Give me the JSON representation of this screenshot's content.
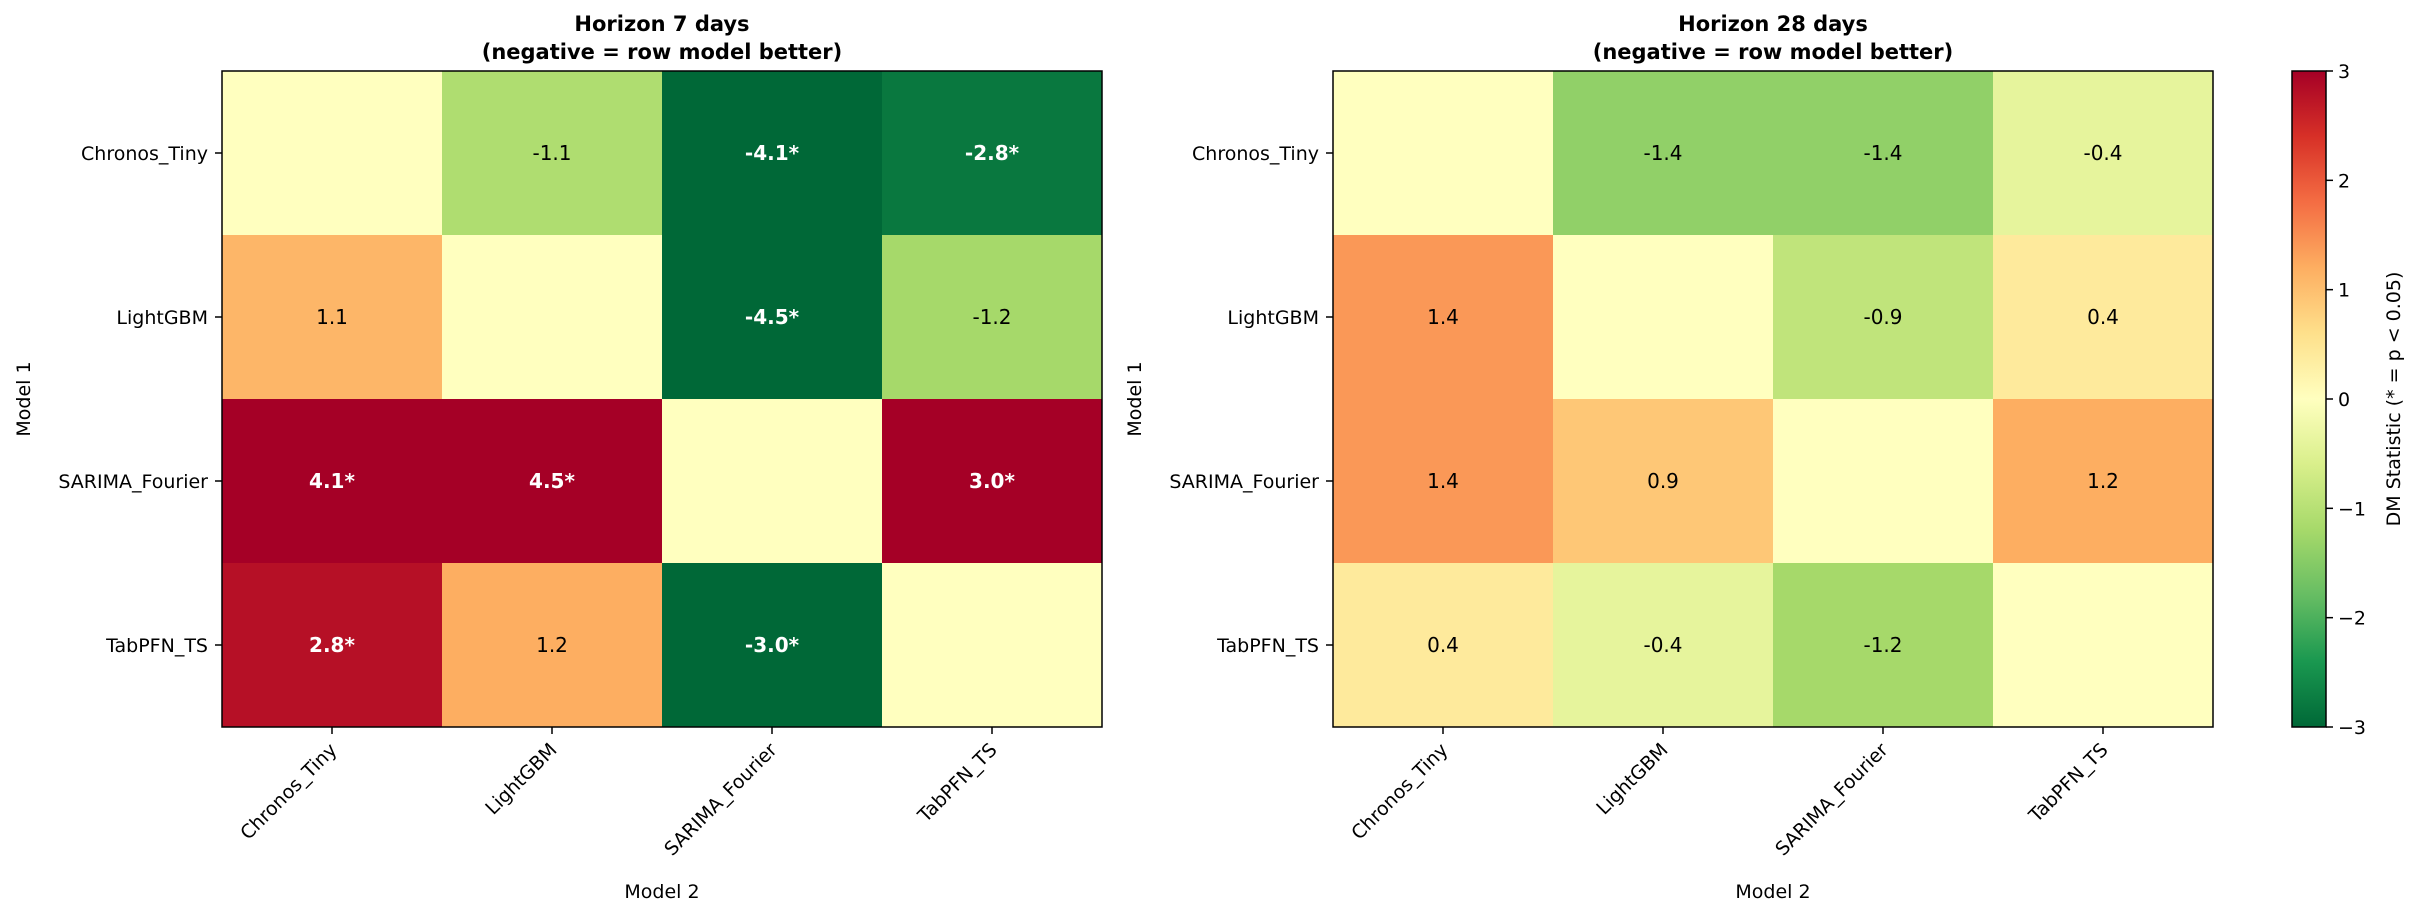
{
  "figure": {
    "colorbar": {
      "label": "DM Statistic (* = p < 0.05)",
      "range": [
        -3,
        3
      ],
      "ticks": [
        "3",
        "2",
        "1",
        "0",
        "−1",
        "−2",
        "−3"
      ],
      "colormap": "RdYlGn_r"
    }
  },
  "chart_data": [
    {
      "type": "heatmap",
      "title_line1": "Horizon 7 days",
      "title_line2": "(negative = row model better)",
      "xlabel": "Model 2",
      "ylabel": "Model 1",
      "rows": [
        "Chronos_Tiny",
        "LightGBM",
        "SARIMA_Fourier",
        "TabPFN_TS"
      ],
      "columns": [
        "Chronos_Tiny",
        "LightGBM",
        "SARIMA_Fourier",
        "TabPFN_TS"
      ],
      "values": [
        [
          0.0,
          -1.1,
          -4.1,
          -2.8
        ],
        [
          1.1,
          0.0,
          -4.5,
          -1.2
        ],
        [
          4.1,
          4.5,
          0.0,
          3.0
        ],
        [
          2.8,
          1.2,
          -3.0,
          0.0
        ]
      ],
      "cell_labels": [
        [
          "",
          "-1.1",
          "-4.1*",
          "-2.8*"
        ],
        [
          "1.1",
          "",
          "-4.5*",
          "-1.2"
        ],
        [
          "4.1*",
          "4.5*",
          "",
          "3.0*"
        ],
        [
          "2.8*",
          "1.2",
          "-3.0*",
          ""
        ]
      ],
      "significant": [
        [
          false,
          false,
          true,
          true
        ],
        [
          false,
          false,
          true,
          false
        ],
        [
          true,
          true,
          false,
          true
        ],
        [
          true,
          false,
          true,
          false
        ]
      ],
      "vmin": -3,
      "vmax": 3
    },
    {
      "type": "heatmap",
      "title_line1": "Horizon 28 days",
      "title_line2": "(negative = row model better)",
      "xlabel": "Model 2",
      "ylabel": "Model 1",
      "rows": [
        "Chronos_Tiny",
        "LightGBM",
        "SARIMA_Fourier",
        "TabPFN_TS"
      ],
      "columns": [
        "Chronos_Tiny",
        "LightGBM",
        "SARIMA_Fourier",
        "TabPFN_TS"
      ],
      "values": [
        [
          0.0,
          -1.4,
          -1.4,
          -0.4
        ],
        [
          1.4,
          0.0,
          -0.9,
          0.4
        ],
        [
          1.4,
          0.9,
          0.0,
          1.2
        ],
        [
          0.4,
          -0.4,
          -1.2,
          0.0
        ]
      ],
      "cell_labels": [
        [
          "",
          "-1.4",
          "-1.4",
          "-0.4"
        ],
        [
          "1.4",
          "",
          "-0.9",
          "0.4"
        ],
        [
          "1.4",
          "0.9",
          "",
          "1.2"
        ],
        [
          "0.4",
          "-0.4",
          "-1.2",
          ""
        ]
      ],
      "significant": [
        [
          false,
          false,
          false,
          false
        ],
        [
          false,
          false,
          false,
          false
        ],
        [
          false,
          false,
          false,
          false
        ],
        [
          false,
          false,
          false,
          false
        ]
      ],
      "vmin": -3,
      "vmax": 3
    }
  ]
}
